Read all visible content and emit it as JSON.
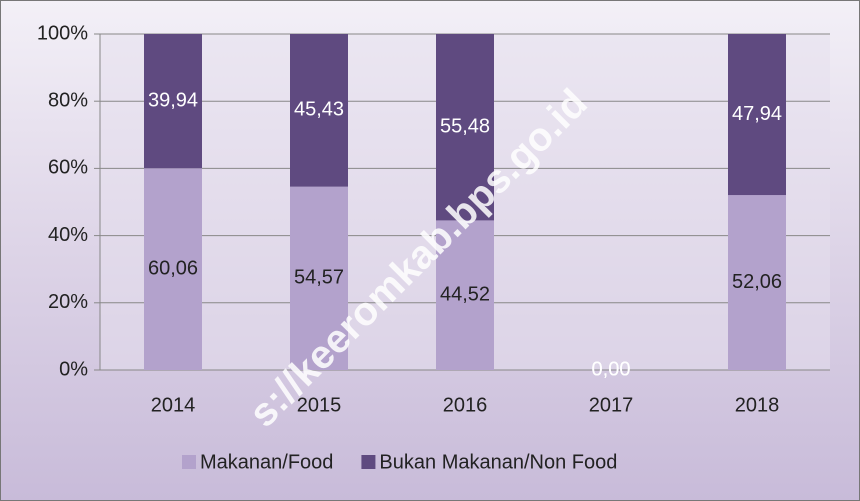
{
  "chart_data": {
    "type": "stacked_bar",
    "categories": [
      "2014",
      "2015",
      "2016",
      "2017",
      "2018"
    ],
    "series": [
      {
        "name": "Makanan/Food",
        "color": "#b3a2cc",
        "values": [
          60.06,
          54.57,
          44.52,
          0,
          52.06
        ],
        "value_labels": [
          "60,06",
          "54,57",
          "44,52",
          "0,00",
          "52,06"
        ]
      },
      {
        "name": "Bukan Makanan/Non Food",
        "color": "#5f4a80",
        "values": [
          39.94,
          45.43,
          55.48,
          0,
          47.94
        ],
        "value_labels": [
          "39,94",
          "45,43",
          "55,48",
          "0,00",
          "47,94"
        ]
      }
    ],
    "ylim": [
      0,
      100
    ],
    "yticks": [
      {
        "value": 0,
        "label": "0%"
      },
      {
        "value": 20,
        "label": "20%"
      },
      {
        "value": 40,
        "label": "40%"
      },
      {
        "value": 60,
        "label": "60%"
      },
      {
        "value": 80,
        "label": "80%"
      },
      {
        "value": 100,
        "label": "100%"
      }
    ],
    "grid": true,
    "legend": "bottom",
    "watermark": "s://keeromkab.bps.go.id"
  }
}
